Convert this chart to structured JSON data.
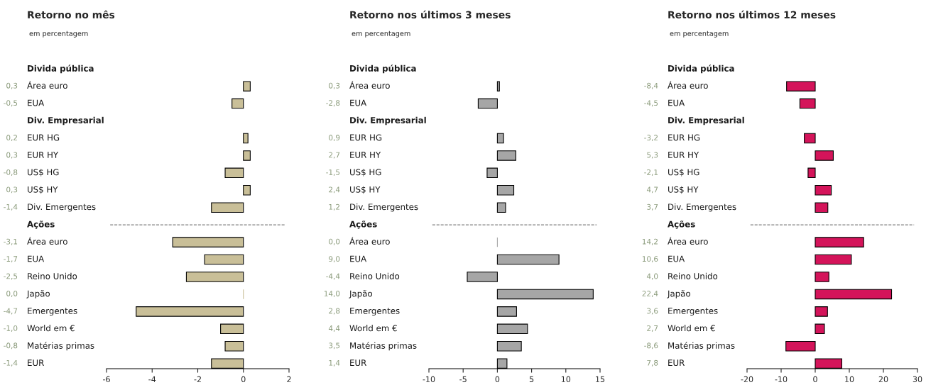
{
  "chart_data": [
    {
      "type": "bar",
      "orientation": "horizontal",
      "title": "Retorno no mês",
      "subtitle": "em percentagem",
      "categories": [
        "Divida pública",
        "Área euro",
        "EUA",
        "Div. Empresarial",
        "EUR HG",
        "EUR HY",
        "US$ HG",
        "US$ HY",
        "Div. Emergentes",
        "Ações",
        "Área euro",
        "EUA",
        "Reino Unido",
        "Japão",
        "Emergentes",
        "World em €",
        "Matérias primas",
        "EUR"
      ],
      "values": [
        null,
        0.3,
        -0.5,
        null,
        0.2,
        0.3,
        -0.8,
        0.3,
        -1.4,
        null,
        -3.1,
        -1.7,
        -2.5,
        0.0,
        -4.7,
        -1.0,
        -0.8,
        -1.4
      ],
      "value_labels": [
        null,
        "0,3",
        "-0,5",
        null,
        "0,2",
        "0,3",
        "-0,8",
        "0,3",
        "-1,4",
        null,
        "-3,1",
        "-1,7",
        "-2,5",
        "0,0",
        "-4,7",
        "-1,0",
        "-0,8",
        "-1,4"
      ],
      "color": "#c9bf98",
      "xlim": [
        -6,
        2
      ],
      "xticks": [
        -6,
        -4,
        -2,
        0,
        2
      ],
      "ref_lines": [
        {
          "axis": "y",
          "value": "Ações",
          "line_style": "dashed",
          "color": "#808080"
        }
      ]
    },
    {
      "type": "bar",
      "orientation": "horizontal",
      "title": "Retorno nos últimos 3 meses",
      "subtitle": "em percentagem",
      "categories": [
        "Divida pública",
        "Área euro",
        "EUA",
        "Div. Empresarial",
        "EUR HG",
        "EUR HY",
        "US$ HG",
        "US$ HY",
        "Div. Emergentes",
        "Ações",
        "Área euro",
        "EUA",
        "Reino Unido",
        "Japão",
        "Emergentes",
        "World em €",
        "Matérias primas",
        "EUR"
      ],
      "values": [
        null,
        0.3,
        -2.8,
        null,
        0.9,
        2.7,
        -1.5,
        2.4,
        1.2,
        null,
        0.0,
        9.0,
        -4.4,
        14.0,
        2.8,
        4.4,
        3.5,
        1.4
      ],
      "value_labels": [
        null,
        "0,3",
        "-2,8",
        null,
        "0,9",
        "2,7",
        "-1,5",
        "2,4",
        "1,2",
        null,
        "0,0",
        "9,0",
        "-4,4",
        "14,0",
        "2,8",
        "4,4",
        "3,5",
        "1,4"
      ],
      "color": "#a6a6a6",
      "xlim": [
        -10,
        15
      ],
      "xticks": [
        -10,
        -5,
        0,
        5,
        10,
        15
      ],
      "ref_lines": [
        {
          "axis": "y",
          "value": "Ações",
          "line_style": "dashed",
          "color": "#808080"
        }
      ]
    },
    {
      "type": "bar",
      "orientation": "horizontal",
      "title": "Retorno nos últimos 12 meses",
      "subtitle": "em percentagem",
      "categories": [
        "Divida pública",
        "Área euro",
        "EUA",
        "Div. Empresarial",
        "EUR HG",
        "EUR HY",
        "US$ HG",
        "US$ HY",
        "Div. Emergentes",
        "Ações",
        "Área euro",
        "EUA",
        "Reino Unido",
        "Japão",
        "Emergentes",
        "World em €",
        "Matérias primas",
        "EUR"
      ],
      "values": [
        null,
        -8.4,
        -4.5,
        null,
        -3.2,
        5.3,
        -2.1,
        4.7,
        3.7,
        null,
        14.2,
        10.6,
        4.0,
        22.4,
        3.6,
        2.7,
        -8.6,
        7.8
      ],
      "value_labels": [
        null,
        "-8,4",
        "-4,5",
        null,
        "-3,2",
        "5,3",
        "-2,1",
        "4,7",
        "3,7",
        null,
        "14,2",
        "10,6",
        "4,0",
        "22,4",
        "3,6",
        "2,7",
        "-8,6",
        "7,8"
      ],
      "color": "#d4145a",
      "xlim": [
        -20,
        30
      ],
      "xticks": [
        -20,
        -10,
        0,
        10,
        20,
        30
      ],
      "ref_lines": [
        {
          "axis": "y",
          "value": "Ações",
          "line_style": "dashed",
          "color": "#808080"
        }
      ]
    }
  ]
}
